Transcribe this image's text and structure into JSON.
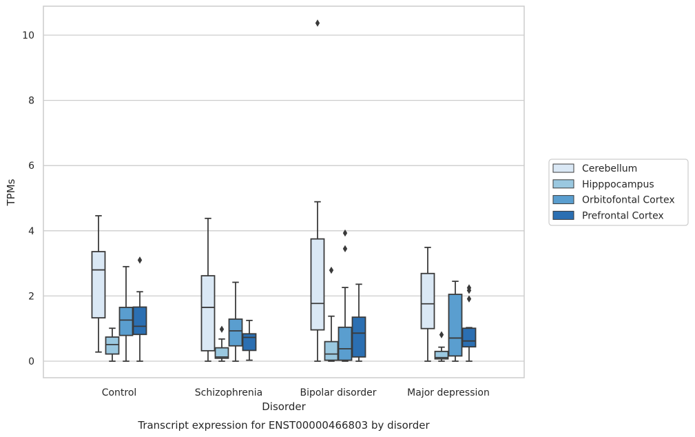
{
  "chart_data": {
    "type": "box",
    "title": "",
    "caption": "Transcript expression for ENST00000466803 by disorder",
    "xlabel": "Disorder",
    "ylabel": "TPMs",
    "ylim": [
      -0.5,
      10.9
    ],
    "yticks": [
      0,
      2,
      4,
      6,
      8,
      10
    ],
    "grid": true,
    "legend_position": "right",
    "categories": [
      "Control",
      "Schizophrenia",
      "Bipolar disorder",
      "Major depression"
    ],
    "series": [
      {
        "name": "Cerebellum",
        "color": "#dae8f5",
        "boxes": [
          {
            "whisker_low": 0.28,
            "q1": 1.33,
            "median": 2.8,
            "q3": 3.36,
            "whisker_high": 4.46,
            "outliers": []
          },
          {
            "whisker_low": 0.0,
            "q1": 0.32,
            "median": 1.65,
            "q3": 2.62,
            "whisker_high": 4.38,
            "outliers": []
          },
          {
            "whisker_low": 0.0,
            "q1": 0.96,
            "median": 1.77,
            "q3": 3.75,
            "whisker_high": 4.89,
            "outliers": [
              10.37
            ]
          },
          {
            "whisker_low": 0.0,
            "q1": 1.0,
            "median": 1.76,
            "q3": 2.69,
            "whisker_high": 3.49,
            "outliers": []
          }
        ]
      },
      {
        "name": "Hipppocampus",
        "color": "#9ac8e0",
        "boxes": [
          {
            "whisker_low": 0.0,
            "q1": 0.22,
            "median": 0.51,
            "q3": 0.74,
            "whisker_high": 1.01,
            "outliers": []
          },
          {
            "whisker_low": 0.0,
            "q1": 0.09,
            "median": 0.13,
            "q3": 0.41,
            "whisker_high": 0.68,
            "outliers": [
              0.98
            ]
          },
          {
            "whisker_low": 0.0,
            "q1": 0.03,
            "median": 0.22,
            "q3": 0.6,
            "whisker_high": 1.38,
            "outliers": [
              2.79
            ]
          },
          {
            "whisker_low": 0.0,
            "q1": 0.07,
            "median": 0.11,
            "q3": 0.3,
            "whisker_high": 0.43,
            "outliers": [
              0.81
            ]
          }
        ]
      },
      {
        "name": "Orbitofontal Cortex",
        "color": "#5a9ecf",
        "boxes": [
          {
            "whisker_low": 0.0,
            "q1": 0.79,
            "median": 1.26,
            "q3": 1.65,
            "whisker_high": 2.9,
            "outliers": []
          },
          {
            "whisker_low": 0.0,
            "q1": 0.47,
            "median": 0.93,
            "q3": 1.29,
            "whisker_high": 2.42,
            "outliers": []
          },
          {
            "whisker_low": 0.0,
            "q1": 0.03,
            "median": 0.38,
            "q3": 1.04,
            "whisker_high": 2.26,
            "outliers": [
              3.45,
              3.93
            ]
          },
          {
            "whisker_low": 0.0,
            "q1": 0.16,
            "median": 0.71,
            "q3": 2.05,
            "whisker_high": 2.45,
            "outliers": []
          }
        ]
      },
      {
        "name": "Prefrontal Cortex",
        "color": "#2b6fb2",
        "boxes": [
          {
            "whisker_low": 0.0,
            "q1": 0.82,
            "median": 1.07,
            "q3": 1.66,
            "whisker_high": 2.13,
            "outliers": [
              3.1
            ]
          },
          {
            "whisker_low": 0.03,
            "q1": 0.33,
            "median": 0.73,
            "q3": 0.84,
            "whisker_high": 1.25,
            "outliers": []
          },
          {
            "whisker_low": 0.0,
            "q1": 0.13,
            "median": 0.86,
            "q3": 1.35,
            "whisker_high": 2.36,
            "outliers": []
          },
          {
            "whisker_low": 0.0,
            "q1": 0.44,
            "median": 0.62,
            "q3": 1.01,
            "whisker_high": 1.03,
            "outliers": [
              1.91,
              2.17,
              2.25
            ]
          }
        ]
      }
    ]
  }
}
